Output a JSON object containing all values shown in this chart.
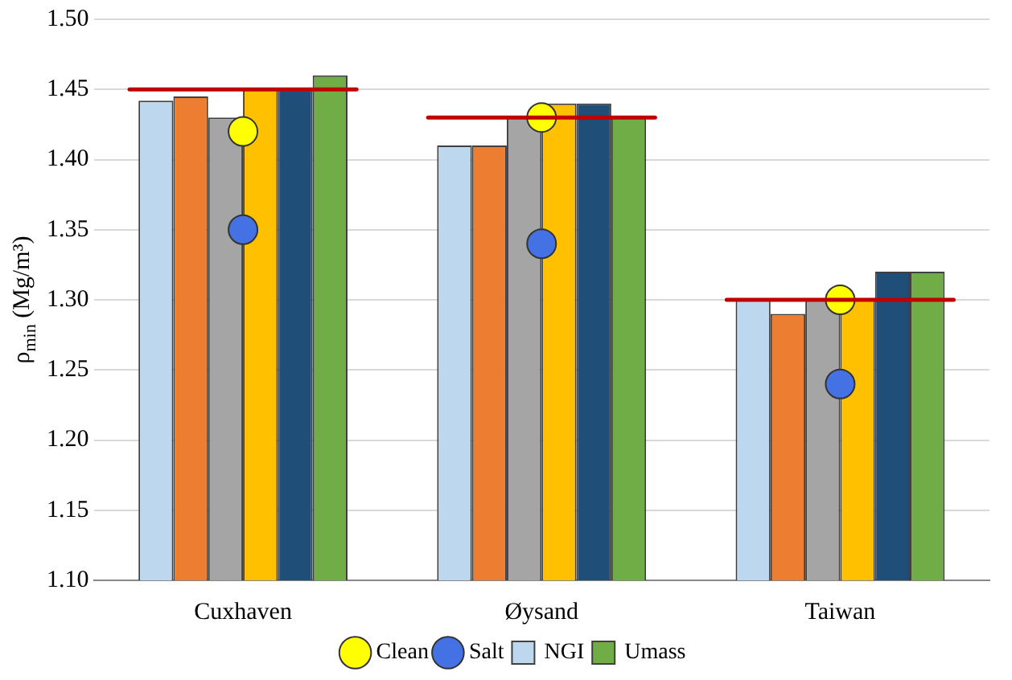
{
  "chart_data": {
    "type": "bar",
    "ylabel": "ρ$_{min}$ (Mg/m³)",
    "categories": [
      "Cuxhaven",
      "Øysand",
      "Taiwan"
    ],
    "series": [
      {
        "name": "NGI",
        "color": "#bdd7ee",
        "values": [
          1.442,
          1.41,
          1.3
        ]
      },
      {
        "color": "#ed7d31",
        "values": [
          1.445,
          1.41,
          1.29
        ]
      },
      {
        "color": "#a5a5a5",
        "values": [
          1.43,
          1.43,
          1.3
        ]
      },
      {
        "color": "#ffc000",
        "values": [
          1.45,
          1.44,
          1.3
        ]
      },
      {
        "color": "#1f4e79",
        "values": [
          1.45,
          1.44,
          1.32
        ]
      },
      {
        "name": "Umass",
        "color": "#70ad47",
        "values": [
          1.46,
          1.43,
          1.32
        ]
      },
      {
        "name": "Clean",
        "type": "scatter",
        "color": "#ffff00",
        "values": [
          1.42,
          1.43,
          1.3
        ]
      },
      {
        "name": "Salt",
        "type": "scatter",
        "color": "#4472e4",
        "values": [
          1.35,
          1.34,
          1.24
        ]
      }
    ],
    "ref_lines": [
      {
        "axis": "y",
        "value": 1.45,
        "color": "#c00000"
      },
      {
        "axis": "y",
        "value": 1.43,
        "color": "#c00000"
      },
      {
        "axis": "y",
        "value": 1.3,
        "color": "#c00000"
      }
    ],
    "ylim": [
      1.1,
      1.5
    ],
    "yticks": [
      {
        "value": 1.1,
        "label": "1.10"
      },
      1.15,
      {
        "value": 1.2,
        "label": "1.20"
      },
      1.25,
      {
        "value": 1.3,
        "label": "1.30"
      },
      1.35,
      {
        "value": 1.4,
        "label": "1.40"
      },
      1.45,
      {
        "value": 1.5,
        "label": "1.50"
      }
    ],
    "grid": "y",
    "legend": "bottom",
    "marker": "circle"
  }
}
